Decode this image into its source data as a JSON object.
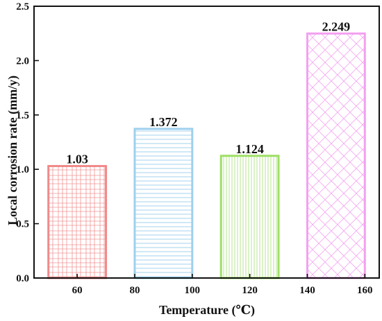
{
  "chart_data": {
    "type": "bar",
    "xlabel": "Temperature (℃)",
    "ylabel": "Local corrosion rate (mm/y)",
    "categories": [
      "60",
      "90",
      "120",
      "150"
    ],
    "x_centers": [
      60,
      90,
      120,
      150
    ],
    "bar_width": 20,
    "values": [
      1.03,
      1.372,
      1.124,
      2.249
    ],
    "data_labels": [
      "1.03",
      "1.372",
      "1.124",
      "2.249"
    ],
    "xlim": [
      45,
      165
    ],
    "ylim": [
      0.0,
      2.5
    ],
    "x_ticks": [
      60,
      80,
      100,
      120,
      140,
      160
    ],
    "x_tick_labels": [
      "60",
      "80",
      "100",
      "120",
      "140",
      "160"
    ],
    "y_ticks": [
      0.0,
      0.5,
      1.0,
      1.5,
      2.0,
      2.5
    ],
    "y_tick_labels": [
      "0.0",
      "0.5",
      "1.0",
      "1.5",
      "2.0",
      "2.5"
    ],
    "grid": false,
    "legend": "none",
    "bar_colors": [
      "#f08a8a",
      "#9ed0ec",
      "#9ede66",
      "#f3a0f0"
    ],
    "bar_patterns": [
      "grid",
      "horizontal",
      "vertical",
      "crosshatch"
    ]
  }
}
